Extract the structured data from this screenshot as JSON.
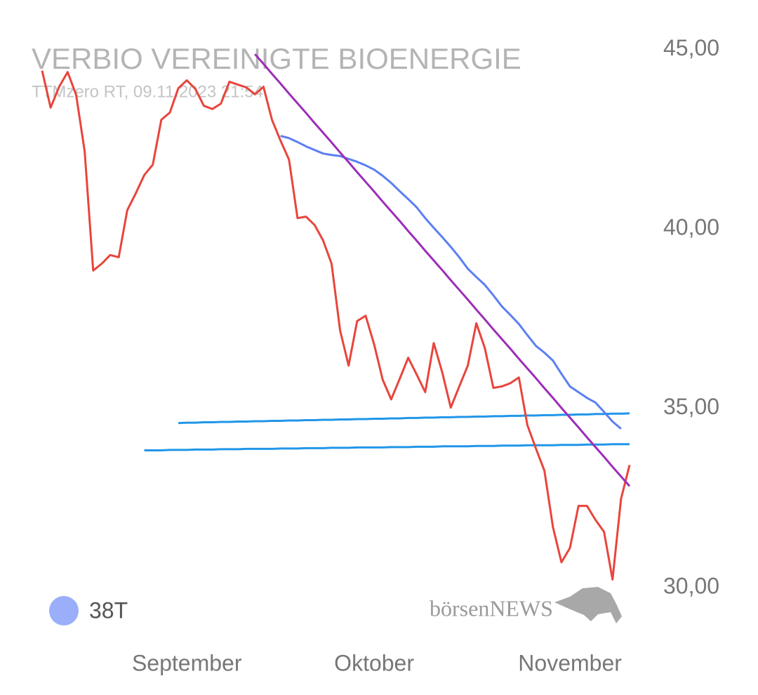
{
  "chart_data": {
    "type": "line",
    "title": "VERBIO VEREINIGTE BIOENERGIE",
    "subtitle": "TTMzero RT, 09.11.2023 21:54",
    "watermark": "börsenNEWS",
    "categories": [
      null,
      null,
      null,
      null,
      null,
      null,
      null,
      null,
      null,
      null,
      null,
      null,
      null,
      null,
      null,
      null,
      null,
      "September",
      null,
      null,
      null,
      null,
      null,
      null,
      null,
      null,
      null,
      null,
      null,
      null,
      null,
      null,
      null,
      null,
      null,
      null,
      null,
      null,
      null,
      "Oktober",
      null,
      null,
      null,
      null,
      null,
      null,
      null,
      null,
      null,
      null,
      null,
      null,
      null,
      null,
      null,
      null,
      null,
      null,
      null,
      null,
      null,
      null,
      "November",
      null,
      null,
      null,
      null,
      null,
      null,
      null
    ],
    "ylim": [
      29.3,
      45.4
    ],
    "yticks": [
      {
        "value": 30,
        "label": "30,00"
      },
      {
        "value": 35,
        "label": "35,00"
      },
      {
        "value": 40,
        "label": "40,00"
      },
      {
        "value": 45,
        "label": "45,00"
      }
    ],
    "grid": false,
    "legend": "bottom-left",
    "series": [
      {
        "color": "#2196e8",
        "values": [
          null,
          null,
          null,
          null,
          null,
          null,
          null,
          null,
          null,
          null,
          null,
          null,
          null,
          null,
          null,
          null,
          34.59,
          34.6,
          34.6,
          34.61,
          34.61,
          34.62,
          34.62,
          34.63,
          34.63,
          34.64,
          34.64,
          34.65,
          34.65,
          34.66,
          34.66,
          34.67,
          34.67,
          34.68,
          34.68,
          34.69,
          34.69,
          34.7,
          34.7,
          34.71,
          34.71,
          34.72,
          34.72,
          34.73,
          34.73,
          34.74,
          34.74,
          34.75,
          34.75,
          34.76,
          34.76,
          34.77,
          34.77,
          34.78,
          34.78,
          34.79,
          34.79,
          34.8,
          34.8,
          34.81,
          34.81,
          34.82,
          34.82,
          34.83,
          34.83,
          34.84,
          34.84,
          34.85,
          34.85,
          34.86
        ]
      },
      {
        "color": "#2196e8",
        "values": [
          null,
          null,
          null,
          null,
          null,
          null,
          null,
          null,
          null,
          null,
          null,
          null,
          33.83,
          33.83,
          33.83,
          33.84,
          33.84,
          33.84,
          33.85,
          33.85,
          33.85,
          33.86,
          33.86,
          33.86,
          33.87,
          33.87,
          33.87,
          33.87,
          33.88,
          33.88,
          33.88,
          33.89,
          33.89,
          33.89,
          33.9,
          33.9,
          33.9,
          33.91,
          33.91,
          33.91,
          33.91,
          33.92,
          33.92,
          33.92,
          33.93,
          33.93,
          33.93,
          33.94,
          33.94,
          33.94,
          33.94,
          33.95,
          33.95,
          33.95,
          33.96,
          33.96,
          33.96,
          33.97,
          33.97,
          33.97,
          33.97,
          33.98,
          33.98,
          33.98,
          33.99,
          33.99,
          33.99,
          34.0,
          34.0,
          34.0
        ]
      },
      {
        "name": "38T",
        "color": "#5b7ff2",
        "legend_color": "#9aaefa",
        "values": [
          null,
          null,
          null,
          null,
          null,
          null,
          null,
          null,
          null,
          null,
          null,
          null,
          null,
          null,
          null,
          null,
          null,
          null,
          null,
          null,
          null,
          null,
          null,
          null,
          null,
          null,
          null,
          null,
          42.59,
          42.53,
          42.42,
          42.3,
          42.2,
          42.1,
          42.06,
          42.03,
          41.95,
          41.87,
          41.77,
          41.65,
          41.48,
          41.28,
          41.05,
          40.83,
          40.6,
          40.3,
          40.03,
          39.77,
          39.5,
          39.21,
          38.89,
          38.66,
          38.44,
          38.15,
          37.84,
          37.6,
          37.35,
          37.04,
          36.74,
          36.55,
          36.33,
          35.96,
          35.61,
          35.45,
          35.29,
          35.16,
          34.9,
          34.63,
          34.43,
          null
        ]
      },
      {
        "color": "#e8453c",
        "values": [
          44.41,
          43.38,
          43.96,
          44.37,
          43.73,
          42.16,
          38.84,
          39.03,
          39.27,
          39.21,
          40.52,
          40.99,
          41.5,
          41.79,
          43.04,
          43.24,
          43.92,
          44.14,
          43.9,
          43.43,
          43.34,
          43.49,
          44.1,
          44.02,
          43.94,
          43.75,
          43.96,
          43.04,
          42.46,
          41.93,
          40.3,
          40.34,
          40.11,
          39.68,
          39.03,
          37.17,
          36.19,
          37.43,
          37.58,
          36.78,
          35.8,
          35.25,
          35.82,
          36.41,
          35.94,
          35.45,
          36.82,
          36.0,
          35.02,
          35.61,
          36.19,
          37.37,
          36.68,
          35.57,
          35.61,
          35.7,
          35.86,
          34.53,
          33.88,
          33.26,
          31.69,
          30.71,
          31.11,
          32.28,
          32.28,
          31.89,
          31.56,
          30.23,
          32.48,
          33.42
        ]
      },
      {
        "color": "#9c2eb8",
        "values": [
          null,
          null,
          null,
          null,
          null,
          null,
          null,
          null,
          null,
          null,
          null,
          null,
          null,
          null,
          null,
          null,
          null,
          null,
          null,
          null,
          null,
          null,
          null,
          null,
          null,
          44.87,
          44.6,
          44.32,
          44.05,
          43.77,
          43.5,
          43.23,
          42.95,
          42.68,
          42.41,
          42.13,
          41.86,
          41.58,
          41.31,
          41.04,
          40.76,
          40.49,
          40.22,
          39.94,
          39.67,
          39.39,
          39.12,
          38.85,
          38.57,
          38.3,
          38.03,
          37.75,
          37.48,
          37.2,
          36.93,
          36.66,
          36.38,
          36.11,
          35.84,
          35.56,
          35.29,
          35.01,
          34.74,
          34.47,
          34.19,
          33.92,
          33.65,
          33.37,
          33.1,
          32.83
        ]
      }
    ]
  }
}
